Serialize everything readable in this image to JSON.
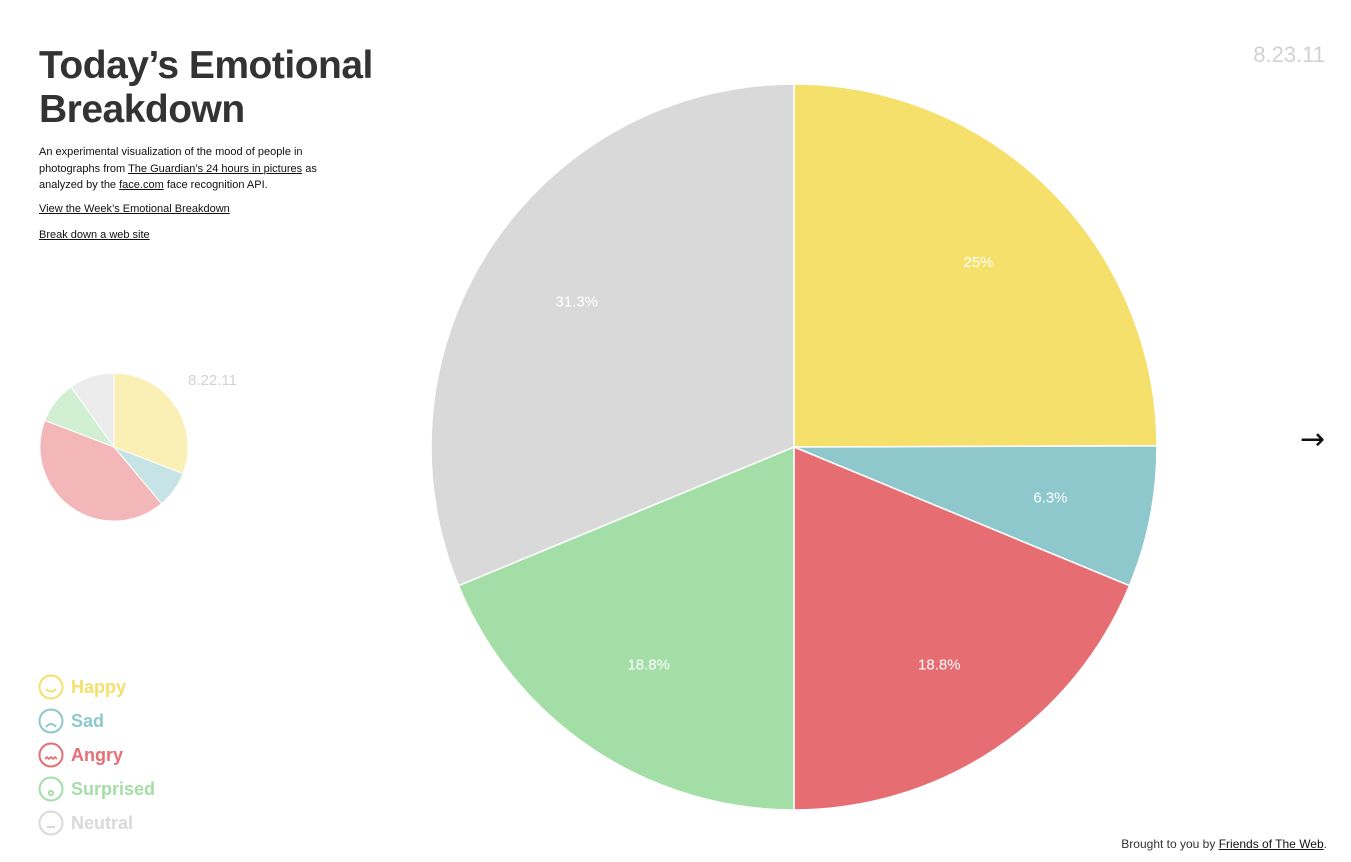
{
  "header": {
    "title_line1": "Today’s Emotional",
    "title_line2": "Breakdown",
    "date": "8.23.11"
  },
  "intro": {
    "text1": "An experimental visualization of the mood of people in photographs from ",
    "link1": "The Guardian’s 24 hours in pictures",
    "text2": " as analyzed by the ",
    "link2": "face.com",
    "text3": " face recognition API."
  },
  "links": {
    "week": "View the Week’s Emotional Breakdown",
    "site": "Break down a web site"
  },
  "nav": {
    "next_arrow": "→"
  },
  "previous_day": {
    "date": "8.22.11"
  },
  "legend": [
    {
      "label": "Happy",
      "color": "#f5e06b",
      "icon": "smile-face-icon"
    },
    {
      "label": "Sad",
      "color": "#8ec8cc",
      "icon": "sad-face-icon"
    },
    {
      "label": "Angry",
      "color": "#e66e73",
      "icon": "angry-face-icon"
    },
    {
      "label": "Surprised",
      "color": "#a3dea6",
      "icon": "surprised-face-icon"
    },
    {
      "label": "Neutral",
      "color": "#d9d9d9",
      "icon": "neutral-face-icon"
    }
  ],
  "footer": {
    "text": "Brought to you by ",
    "link": "Friends of The Web",
    "end": "."
  },
  "chart_data": [
    {
      "type": "pie",
      "categories": [
        "Happy",
        "Sad",
        "Angry",
        "Surprised",
        "Neutral"
      ],
      "values": [
        25,
        6.3,
        18.8,
        18.8,
        31.3
      ],
      "labels": [
        "25%",
        "6.3%",
        "18.8%",
        "18.8%",
        "31.3%"
      ],
      "colors": [
        "#f5e06b",
        "#8ec8cc",
        "#e66e73",
        "#a3dea6",
        "#d9d9d9"
      ]
    },
    {
      "type": "pie",
      "categories": [
        "Happy",
        "Sad",
        "Angry",
        "Surprised",
        "Neutral"
      ],
      "values": [
        25,
        6.5,
        34,
        7.5,
        8
      ],
      "colors": [
        "#faefb5",
        "#c6e4e6",
        "#f3b7b9",
        "#d1efd3",
        "#ececec"
      ]
    }
  ]
}
